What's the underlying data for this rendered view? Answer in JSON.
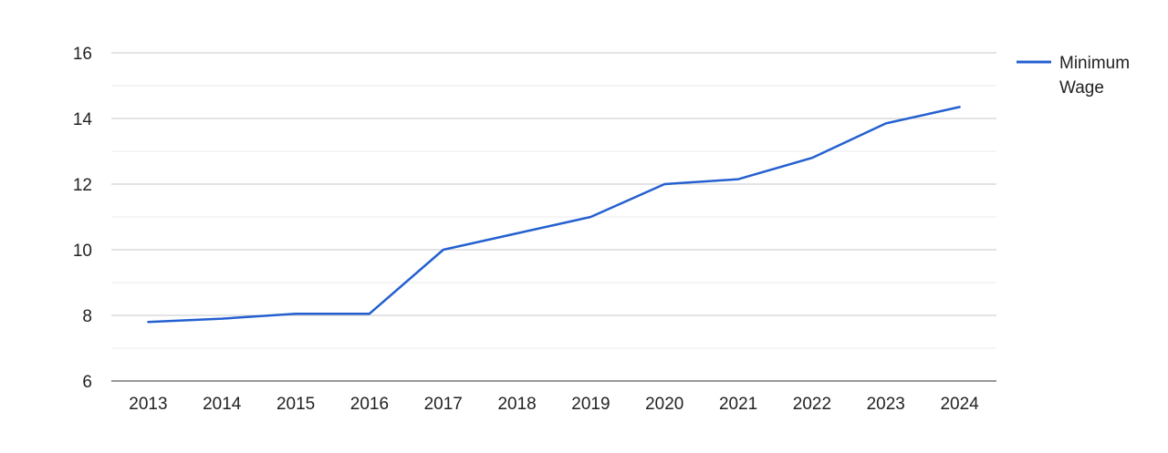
{
  "chart_data": {
    "type": "line",
    "title": "",
    "xlabel": "",
    "ylabel": "",
    "categories": [
      "2013",
      "2014",
      "2015",
      "2016",
      "2017",
      "2018",
      "2019",
      "2020",
      "2021",
      "2022",
      "2023",
      "2024"
    ],
    "series": [
      {
        "name": "Minimum Wage",
        "color": "#2460d0",
        "values": [
          7.8,
          7.9,
          8.05,
          8.05,
          10.0,
          10.5,
          11.0,
          12.0,
          12.15,
          12.8,
          13.85,
          14.35
        ]
      }
    ],
    "ylim": [
      6,
      16
    ],
    "yticks": [
      6,
      8,
      10,
      12,
      14,
      16
    ],
    "grid": true,
    "legend_position": "right",
    "colors": {
      "major_grid": "#c9c9c9",
      "minor_grid": "#ebebeb",
      "axis_text": "#222222"
    }
  }
}
